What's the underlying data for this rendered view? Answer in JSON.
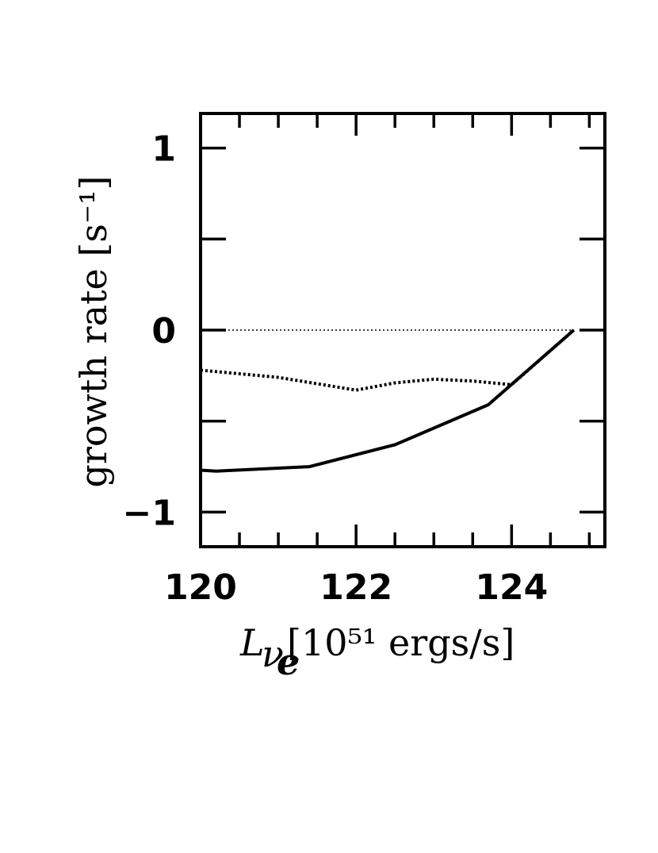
{
  "chart_data": {
    "type": "line",
    "title": "",
    "xlabel": "[10⁵¹ ergs/s]",
    "xlabel_symbol": "L",
    "xlabel_subscript": "ν",
    "xlabel_subsubscript": "e",
    "ylabel": "growth rate [s⁻¹]",
    "xlim": [
      120,
      125.2
    ],
    "ylim": [
      -1.19,
      1.19
    ],
    "x_major_ticks": [
      120,
      122,
      124
    ],
    "x_tick_labels": [
      "120",
      "122",
      "124"
    ],
    "x_minor_ticks": [
      120.5,
      121,
      121.5,
      122.5,
      123,
      123.5,
      124.5,
      125
    ],
    "y_major_ticks": [
      -1,
      0,
      1
    ],
    "y_tick_labels": [
      "−1",
      "0",
      "1"
    ],
    "y_minor_ticks": [
      -0.5,
      0.5
    ],
    "grid": false,
    "series": [
      {
        "style": "solid",
        "x": [
          120.0,
          120.2,
          121.4,
          122.5,
          123.7,
          124.8
        ],
        "y": [
          -0.77,
          -0.775,
          -0.75,
          -0.63,
          -0.41,
          0.0
        ]
      },
      {
        "style": "dotted",
        "x": [
          120.0,
          121.0,
          122.0,
          122.5,
          123.0,
          123.5,
          124.0,
          124.8
        ],
        "y": [
          -0.22,
          -0.26,
          -0.33,
          -0.29,
          -0.27,
          -0.28,
          -0.3,
          0.0
        ]
      },
      {
        "style": "thin-dotted",
        "x": [
          120.0,
          124.8
        ],
        "y": [
          0.0,
          0.0
        ]
      }
    ]
  }
}
